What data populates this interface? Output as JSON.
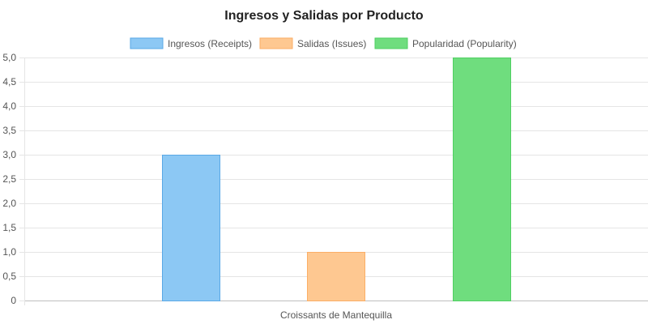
{
  "chart_data": {
    "type": "bar",
    "title": "Ingresos y Salidas por Producto",
    "categories": [
      "Croissants de Mantequilla"
    ],
    "series": [
      {
        "name": "Ingresos (Receipts)",
        "values": [
          3
        ],
        "fill": "#8cc8f4",
        "stroke": "#5aa8e6"
      },
      {
        "name": "Salidas (Issues)",
        "values": [
          1
        ],
        "fill": "#fec891",
        "stroke": "#fbae66"
      },
      {
        "name": "Popularidad (Popularity)",
        "values": [
          5
        ],
        "fill": "#6fdd7e",
        "stroke": "#4fcf61"
      }
    ],
    "ylim": [
      0,
      5
    ],
    "yticks": [
      "0",
      "0,5",
      "1,0",
      "1,5",
      "2,0",
      "2,5",
      "3,0",
      "3,5",
      "4,0",
      "4,5",
      "5,0"
    ],
    "legend": "top",
    "grid": true
  }
}
